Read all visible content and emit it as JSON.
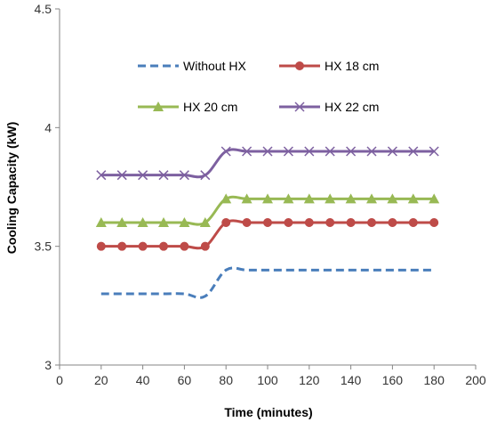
{
  "chart_data": {
    "type": "line",
    "title": "",
    "xlabel": "Time (minutes)",
    "ylabel": "Cooling Capacity (kW)",
    "xlim": [
      0,
      200
    ],
    "ylim": [
      3,
      4.5
    ],
    "x_ticks": [
      "0",
      "20",
      "40",
      "60",
      "80",
      "100",
      "120",
      "140",
      "160",
      "180",
      "200"
    ],
    "y_ticks": [
      "3",
      "3.5",
      "4",
      "4.5"
    ],
    "grid": false,
    "legend_placement": "top-center",
    "series": [
      {
        "name": "Without HX",
        "color": "#4a7ebb",
        "line": "dashed",
        "marker": "none",
        "x": [
          20,
          30,
          40,
          50,
          60,
          70,
          80,
          90,
          100,
          110,
          120,
          130,
          140,
          150,
          160,
          170,
          180
        ],
        "values": [
          3.3,
          3.3,
          3.3,
          3.3,
          3.3,
          3.29,
          3.4,
          3.4,
          3.4,
          3.4,
          3.4,
          3.4,
          3.4,
          3.4,
          3.4,
          3.4,
          3.4
        ]
      },
      {
        "name": "HX 18 cm",
        "color": "#be4b48",
        "line": "solid",
        "marker": "circle",
        "x": [
          20,
          30,
          40,
          50,
          60,
          70,
          80,
          90,
          100,
          110,
          120,
          130,
          140,
          150,
          160,
          170,
          180
        ],
        "values": [
          3.5,
          3.5,
          3.5,
          3.5,
          3.5,
          3.5,
          3.6,
          3.6,
          3.6,
          3.6,
          3.6,
          3.6,
          3.6,
          3.6,
          3.6,
          3.6,
          3.6
        ]
      },
      {
        "name": "HX 20 cm",
        "color": "#98b954",
        "line": "solid",
        "marker": "triangle",
        "x": [
          20,
          30,
          40,
          50,
          60,
          70,
          80,
          90,
          100,
          110,
          120,
          130,
          140,
          150,
          160,
          170,
          180
        ],
        "values": [
          3.6,
          3.6,
          3.6,
          3.6,
          3.6,
          3.6,
          3.7,
          3.7,
          3.7,
          3.7,
          3.7,
          3.7,
          3.7,
          3.7,
          3.7,
          3.7,
          3.7
        ]
      },
      {
        "name": "HX 22 cm",
        "color": "#7d60a0",
        "line": "solid",
        "marker": "x",
        "x": [
          20,
          30,
          40,
          50,
          60,
          70,
          80,
          90,
          100,
          110,
          120,
          130,
          140,
          150,
          160,
          170,
          180
        ],
        "values": [
          3.8,
          3.8,
          3.8,
          3.8,
          3.8,
          3.8,
          3.9,
          3.9,
          3.9,
          3.9,
          3.9,
          3.9,
          3.9,
          3.9,
          3.9,
          3.9,
          3.9
        ]
      }
    ]
  }
}
